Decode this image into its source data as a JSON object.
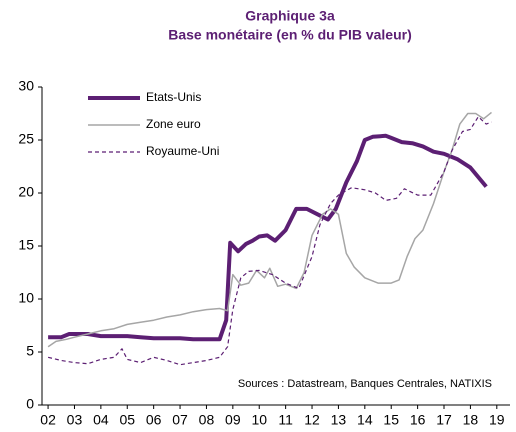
{
  "chart_data": {
    "type": "line",
    "title": "Graphique 3a",
    "subtitle": "Base monétaire (en % du PIB valeur)",
    "annotation": "Sources : Datastream, Banques Centrales, NATIXIS",
    "xlim": [
      2001.77,
      2019.5
    ],
    "ylim": [
      0,
      30
    ],
    "yticks": [
      0,
      5,
      10,
      15,
      20,
      25,
      30
    ],
    "xticks": [
      {
        "value": 2002,
        "label": "02"
      },
      {
        "value": 2003,
        "label": "03"
      },
      {
        "value": 2004,
        "label": "04"
      },
      {
        "value": 2005,
        "label": "05"
      },
      {
        "value": 2006,
        "label": "06"
      },
      {
        "value": 2007,
        "label": "07"
      },
      {
        "value": 2008,
        "label": "08"
      },
      {
        "value": 2009,
        "label": "09"
      },
      {
        "value": 2010,
        "label": "10"
      },
      {
        "value": 2011,
        "label": "11"
      },
      {
        "value": 2012,
        "label": "12"
      },
      {
        "value": 2013,
        "label": "13"
      },
      {
        "value": 2014,
        "label": "14"
      },
      {
        "value": 2015,
        "label": "15"
      },
      {
        "value": 2016,
        "label": "16"
      },
      {
        "value": 2017,
        "label": "17"
      },
      {
        "value": 2018,
        "label": "18"
      },
      {
        "value": 2019,
        "label": "19"
      }
    ],
    "legend": "top-left",
    "series": [
      {
        "name": "Etats-Unis",
        "color": "#5c1f73",
        "line_width": 4,
        "line_style": "solid",
        "x": [
          2002,
          2002.5,
          2002.8,
          2003.5,
          2004,
          2005,
          2005.5,
          2006,
          2006.5,
          2007,
          2007.5,
          2008,
          2008.5,
          2008.75,
          2008.9,
          2009.2,
          2009.5,
          2009.75,
          2010,
          2010.3,
          2010.6,
          2011,
          2011.4,
          2011.8,
          2012.2,
          2012.6,
          2012.9,
          2013.3,
          2013.7,
          2014,
          2014.3,
          2014.8,
          2015,
          2015.4,
          2015.8,
          2016.2,
          2016.6,
          2017,
          2017.5,
          2018,
          2018.3,
          2018.6
        ],
        "values": [
          6.4,
          6.4,
          6.7,
          6.7,
          6.5,
          6.5,
          6.4,
          6.3,
          6.3,
          6.3,
          6.2,
          6.2,
          6.2,
          8,
          15.3,
          14.5,
          15.2,
          15.5,
          15.9,
          16,
          15.5,
          16.5,
          18.5,
          18.5,
          18,
          17.5,
          18.5,
          21,
          23,
          25,
          25.3,
          25.4,
          25.2,
          24.8,
          24.7,
          24.4,
          23.9,
          23.7,
          23.2,
          22.4,
          21.5,
          20.6
        ]
      },
      {
        "name": "Zone euro",
        "color": "#a6a6a6",
        "line_width": 1.5,
        "line_style": "solid",
        "x": [
          2002,
          2002.3,
          2002.7,
          2003,
          2003.5,
          2004,
          2004.5,
          2005,
          2005.5,
          2006,
          2006.5,
          2007,
          2007.5,
          2008,
          2008.5,
          2008.8,
          2009,
          2009.3,
          2009.6,
          2009.9,
          2010.2,
          2010.4,
          2010.7,
          2011,
          2011.4,
          2011.7,
          2012,
          2012.4,
          2012.7,
          2013,
          2013.3,
          2013.6,
          2014,
          2014.5,
          2015,
          2015.3,
          2015.6,
          2015.9,
          2016.2,
          2016.6,
          2017,
          2017.3,
          2017.6,
          2017.9,
          2018.2,
          2018.5,
          2018.8
        ],
        "values": [
          5.5,
          6,
          6.2,
          6.4,
          6.7,
          7.0,
          7.2,
          7.6,
          7.8,
          8,
          8.3,
          8.5,
          8.8,
          9,
          9.1,
          8.9,
          12.3,
          11.3,
          11.5,
          12.7,
          12,
          12.9,
          11.2,
          11.4,
          11,
          12.5,
          16,
          18,
          18.5,
          18,
          14.3,
          13,
          12,
          11.5,
          11.5,
          11.8,
          14,
          15.7,
          16.5,
          19,
          22,
          24,
          26.5,
          27.5,
          27.5,
          27.0,
          27.6
        ]
      },
      {
        "name": "Royaume-Uni",
        "color": "#5c1f73",
        "line_width": 1.2,
        "line_style": "dashed",
        "x": [
          2002,
          2002.5,
          2003,
          2003.5,
          2004,
          2004.5,
          2004.8,
          2005,
          2005.5,
          2006,
          2006.5,
          2007,
          2007.5,
          2008,
          2008.5,
          2008.8,
          2009,
          2009.3,
          2009.6,
          2010,
          2010.5,
          2011,
          2011.5,
          2012,
          2012.3,
          2012.7,
          2013,
          2013.5,
          2014,
          2014.4,
          2014.8,
          2015.2,
          2015.5,
          2016,
          2016.5,
          2017,
          2017.3,
          2017.7,
          2018,
          2018.3,
          2018.6,
          2018.8
        ],
        "values": [
          4.5,
          4.2,
          4.0,
          3.9,
          4.3,
          4.5,
          5.3,
          4.3,
          4.0,
          4.5,
          4.2,
          3.8,
          4.0,
          4.2,
          4.5,
          5.5,
          9,
          12,
          12.6,
          12.7,
          12.3,
          11.5,
          11,
          14,
          17,
          19,
          19.8,
          20.5,
          20.3,
          20,
          19.3,
          19.5,
          20.4,
          19.8,
          19.8,
          22,
          24,
          25.8,
          26,
          27.2,
          26.5,
          26.7
        ]
      }
    ]
  }
}
